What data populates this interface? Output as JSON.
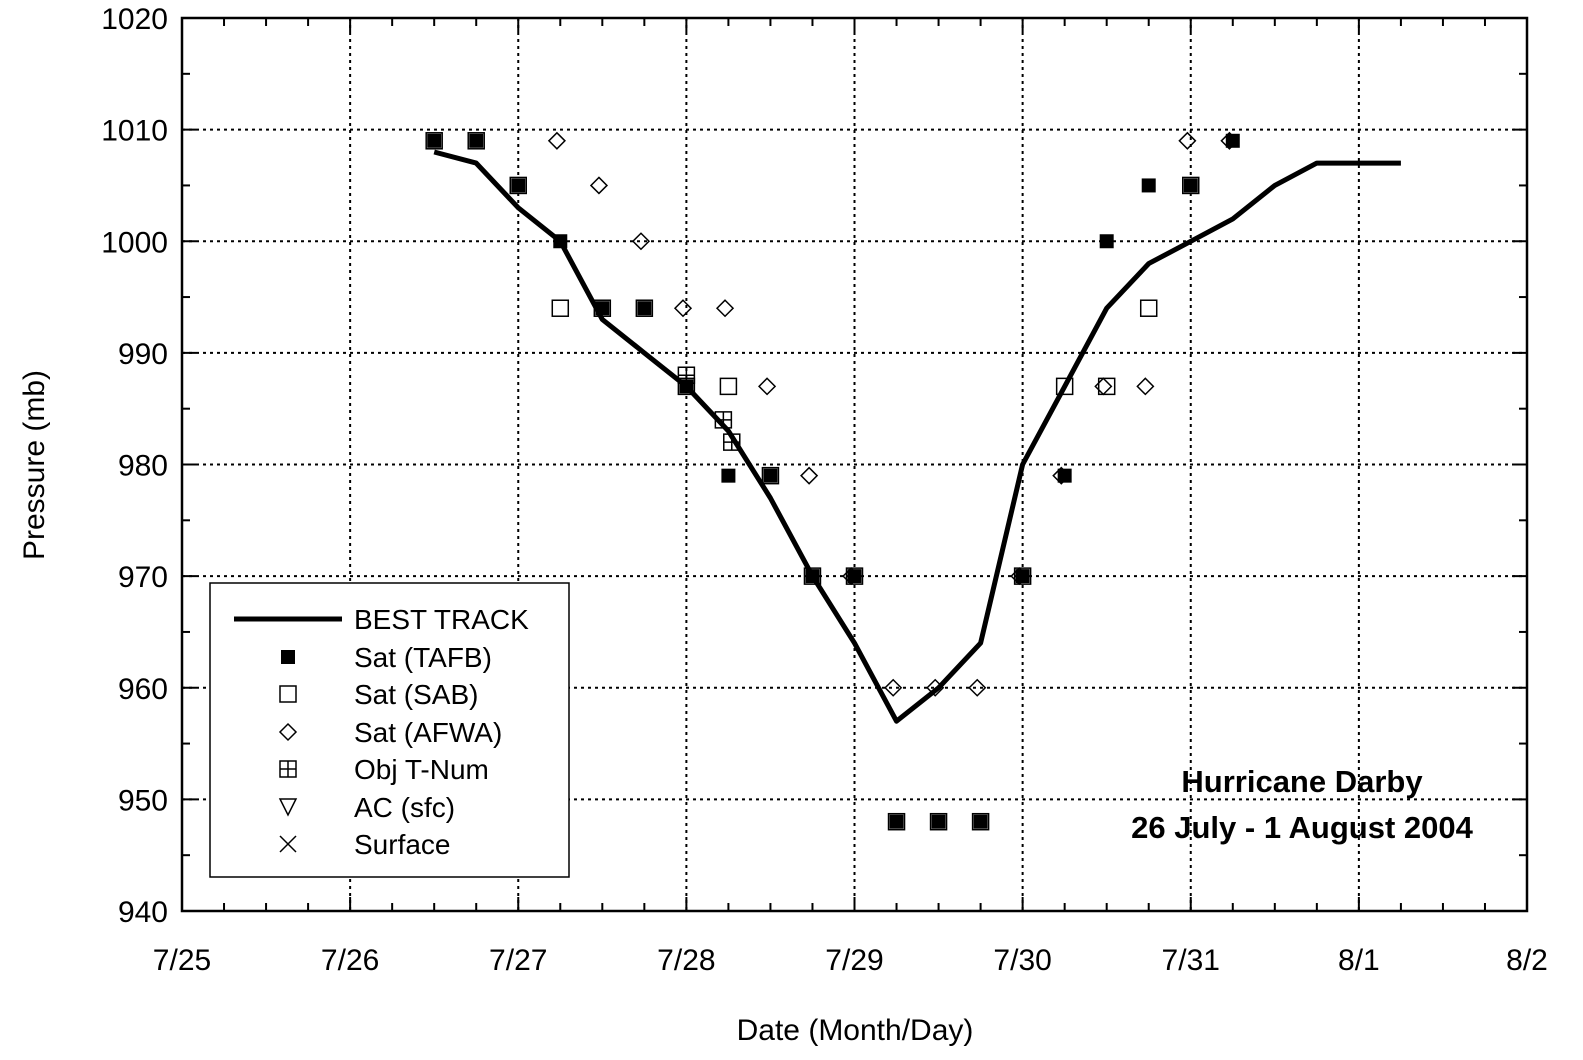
{
  "chart_data": {
    "type": "scatter",
    "title": "",
    "xlabel": "Date (Month/Day)",
    "ylabel": "Pressure (mb)",
    "x_unit": "day of July 2004 (7/31 = 31, 8/1 = 32)",
    "xlim": [
      25,
      33
    ],
    "ylim": [
      940,
      1020
    ],
    "x_ticks": [
      25,
      26,
      27,
      28,
      29,
      30,
      31,
      32,
      33
    ],
    "x_tick_labels": [
      "7/25",
      "7/26",
      "7/27",
      "7/28",
      "7/29",
      "7/30",
      "7/31",
      "8/1",
      "8/2"
    ],
    "y_ticks": [
      940,
      950,
      960,
      970,
      980,
      990,
      1000,
      1010,
      1020
    ],
    "y_tick_labels": [
      "940",
      "950",
      "960",
      "970",
      "980",
      "990",
      "1000",
      "1010",
      "1020"
    ],
    "grid": true,
    "legend_position": "bottom-left",
    "annotation_lines": [
      "Hurricane Darby",
      "26 July - 1 August 2004"
    ],
    "series": [
      {
        "name": "BEST TRACK",
        "marker": "line",
        "x": [
          26.5,
          26.75,
          27.0,
          27.25,
          27.5,
          27.75,
          28.0,
          28.25,
          28.5,
          28.75,
          29.0,
          29.25,
          29.5,
          29.75,
          30.0,
          30.25,
          30.5,
          30.75,
          31.0,
          31.25,
          31.5,
          31.75,
          32.0,
          32.25
        ],
        "y": [
          1008,
          1007,
          1003,
          1000,
          993,
          990,
          987,
          983,
          977,
          970,
          964,
          957,
          960,
          964,
          980,
          987,
          994,
          998,
          1000,
          1002,
          1005,
          1007,
          1007,
          1007
        ]
      },
      {
        "name": "Sat (TAFB)",
        "marker": "filled-square",
        "x": [
          26.5,
          26.75,
          27.0,
          27.25,
          27.5,
          27.75,
          28.0,
          28.25,
          28.5,
          28.75,
          29.0,
          29.25,
          29.5,
          29.75,
          30.0,
          30.25,
          30.5,
          30.75,
          31.0,
          31.25
        ],
        "y": [
          1009,
          1009,
          1005,
          1000,
          994,
          994,
          987,
          979,
          979,
          970,
          970,
          948,
          948,
          948,
          970,
          979,
          1000,
          1005,
          1005,
          1009
        ]
      },
      {
        "name": "Sat (SAB)",
        "marker": "open-square",
        "x": [
          26.5,
          26.75,
          27.0,
          27.25,
          27.5,
          27.75,
          28.0,
          28.25,
          28.5,
          28.75,
          29.0,
          29.25,
          29.5,
          29.75,
          30.0,
          30.25,
          30.5,
          30.75,
          31.0
        ],
        "y": [
          1009,
          1009,
          1005,
          994,
          994,
          994,
          987,
          987,
          979,
          970,
          970,
          948,
          948,
          948,
          970,
          987,
          987,
          994,
          1005
        ]
      },
      {
        "name": "Sat (AFWA)",
        "marker": "open-diamond",
        "x": [
          27.23,
          27.48,
          27.73,
          27.98,
          28.23,
          28.48,
          28.73,
          28.98,
          29.23,
          29.48,
          29.73,
          29.98,
          30.23,
          30.48,
          30.73,
          30.98,
          31.23
        ],
        "y": [
          1009,
          1005,
          1000,
          994,
          994,
          987,
          979,
          970,
          960,
          960,
          960,
          970,
          979,
          987,
          987,
          1009,
          1009
        ]
      },
      {
        "name": "Obj T-Num",
        "marker": "crossed-square",
        "x": [
          28.0,
          28.22,
          28.27
        ],
        "y": [
          988,
          984,
          982
        ]
      },
      {
        "name": "AC (sfc)",
        "marker": "open-triangle-down",
        "x": [],
        "y": []
      },
      {
        "name": "Surface",
        "marker": "x-cross",
        "x": [],
        "y": []
      }
    ]
  }
}
